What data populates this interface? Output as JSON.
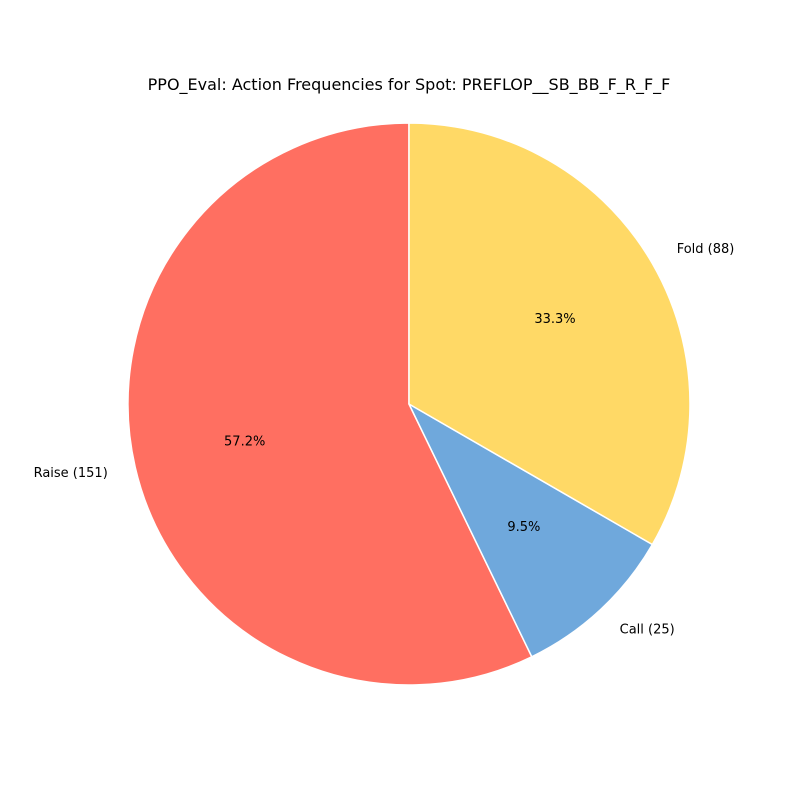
{
  "chart_data": {
    "type": "pie",
    "title": "PPO_Eval: Action Frequencies for Spot: PREFLOP__SB_BB_F_R_F_F",
    "start_angle_deg": 90,
    "direction": "counterclockwise",
    "slices": [
      {
        "label": "Raise (151)",
        "category": "Raise",
        "count": 151,
        "percent_label": "57.2%",
        "color": "#ff6f61"
      },
      {
        "label": "Call (25)",
        "category": "Call",
        "count": 25,
        "percent_label": "9.5%",
        "color": "#6fa8dc"
      },
      {
        "label": "Fold (88)",
        "category": "Fold",
        "count": 88,
        "percent_label": "33.3%",
        "color": "#ffd966"
      }
    ],
    "edge_color": "#ffffff",
    "legend": "none"
  }
}
